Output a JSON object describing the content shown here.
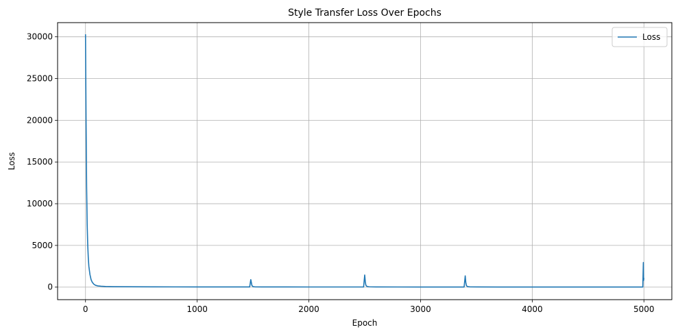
{
  "chart_data": {
    "type": "line",
    "title": "Style Transfer Loss Over Epochs",
    "xlabel": "Epoch",
    "ylabel": "Loss",
    "xlim": [
      -250,
      5250
    ],
    "ylim": [
      -1500,
      31700
    ],
    "xticks": [
      0,
      1000,
      2000,
      3000,
      4000,
      5000
    ],
    "yticks": [
      0,
      5000,
      10000,
      15000,
      20000,
      25000,
      30000
    ],
    "grid": true,
    "legend_position": "top-right",
    "series": [
      {
        "name": "Loss",
        "color": "#1f77b4",
        "x": [
          0,
          5,
          10,
          15,
          20,
          25,
          30,
          40,
          50,
          60,
          75,
          90,
          110,
          140,
          180,
          250,
          400,
          600,
          800,
          1000,
          1200,
          1400,
          1470,
          1480,
          1490,
          1500,
          1520,
          1600,
          1800,
          2000,
          2200,
          2400,
          2490,
          2500,
          2505,
          2510,
          2520,
          2540,
          2600,
          2800,
          3000,
          3200,
          3390,
          3400,
          3405,
          3410,
          3420,
          3440,
          3500,
          3700,
          3900,
          4100,
          4300,
          4500,
          4700,
          4900,
          4990,
          4995,
          4997,
          5000
        ],
        "y": [
          30300,
          20000,
          12000,
          7500,
          5000,
          3500,
          2500,
          1500,
          900,
          600,
          350,
          220,
          150,
          110,
          80,
          60,
          45,
          35,
          30,
          28,
          26,
          25,
          25,
          900,
          200,
          60,
          30,
          25,
          22,
          20,
          20,
          20,
          20,
          1450,
          700,
          250,
          80,
          40,
          25,
          20,
          18,
          18,
          18,
          1350,
          600,
          200,
          70,
          35,
          22,
          18,
          18,
          17,
          17,
          17,
          17,
          17,
          17,
          2950,
          800,
          1100
        ]
      }
    ]
  }
}
